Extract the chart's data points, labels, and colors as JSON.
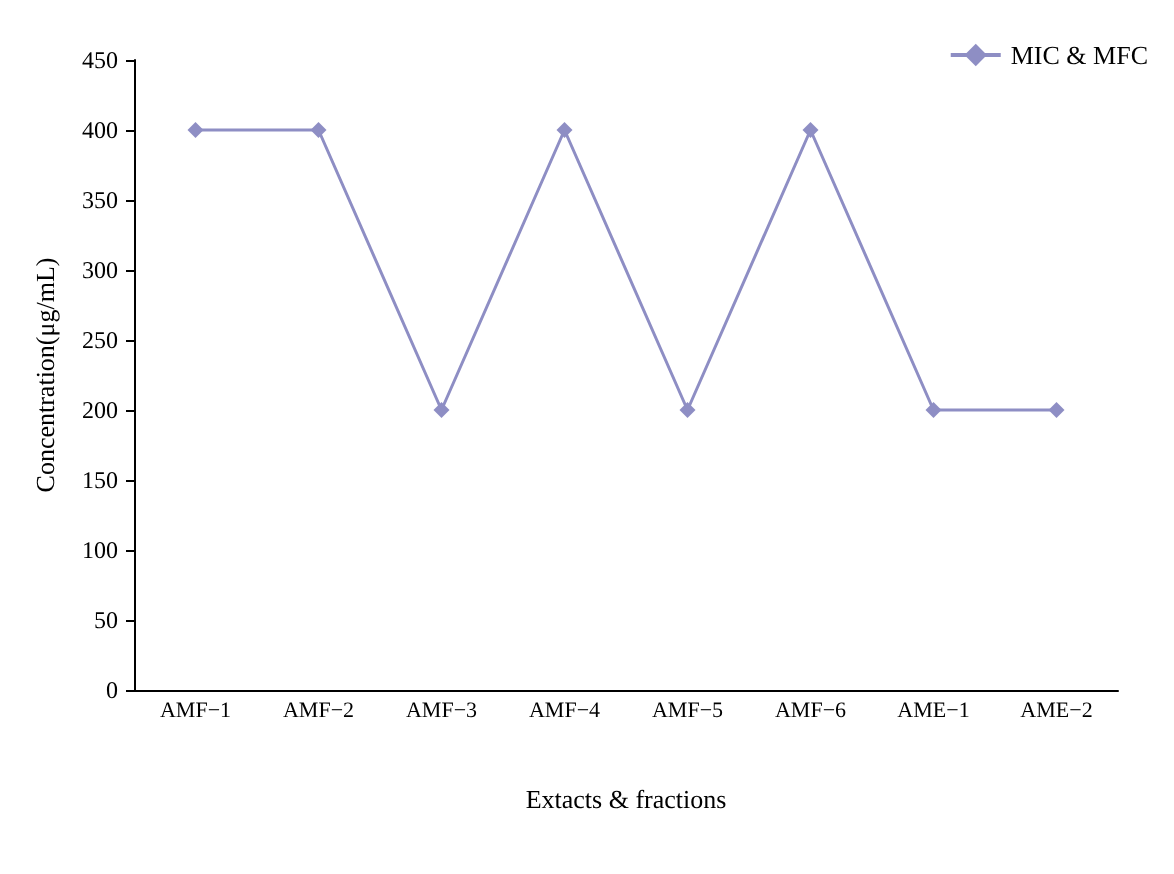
{
  "chart_data": {
    "type": "line",
    "xlabel": "Extacts & fractions",
    "ylabel": "Concentration(μg/mL)",
    "categories": [
      "AMF−1",
      "AMF−2",
      "AMF−3",
      "AMF−4",
      "AMF−5",
      "AMF−6",
      "AME−1",
      "AME−2"
    ],
    "series": [
      {
        "name": "MIC & MFC",
        "color": "#8e8ec4",
        "values": [
          400,
          400,
          200,
          400,
          200,
          400,
          200,
          200
        ]
      }
    ],
    "ylim": [
      0,
      450
    ],
    "yticks": [
      0,
      50,
      100,
      150,
      200,
      250,
      300,
      350,
      400,
      450
    ],
    "grid": false,
    "legend": "top right",
    "marker": "diamond",
    "line_style": "solid"
  }
}
